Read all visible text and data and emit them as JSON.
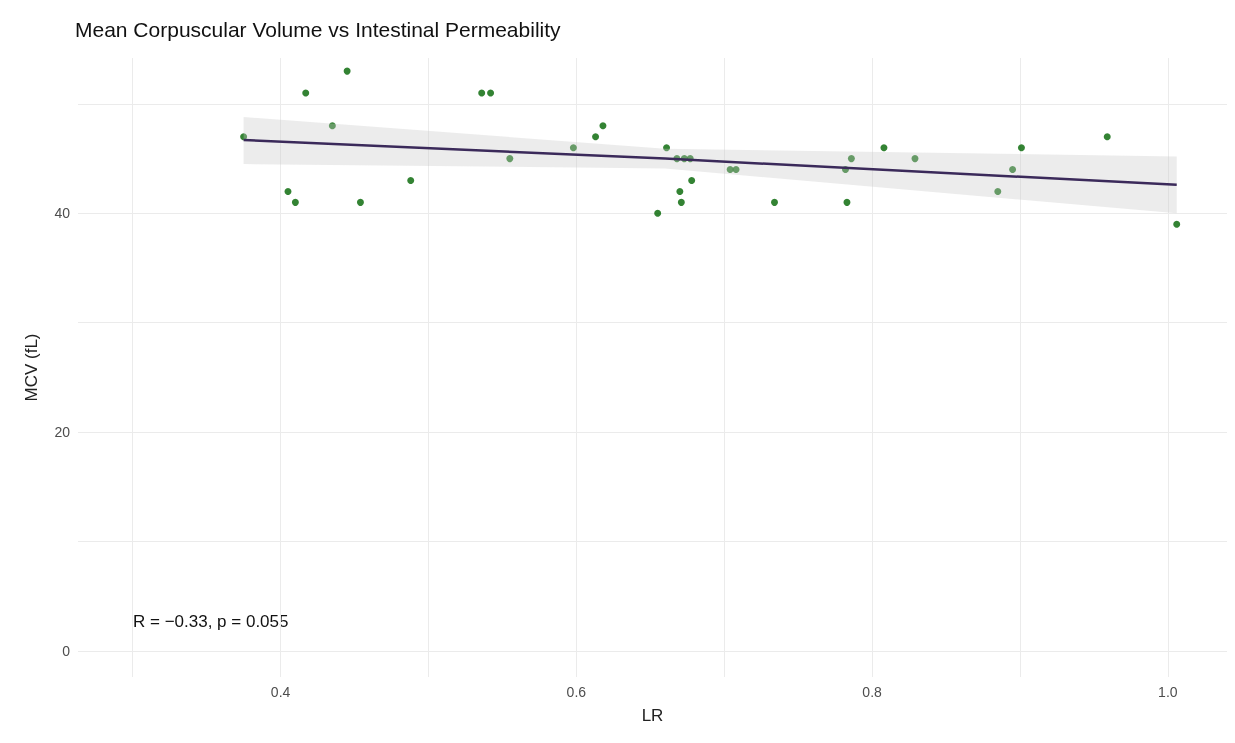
{
  "chart_data": {
    "type": "scatter",
    "title": "Mean Corpuscular Volume vs Intestinal Permeability",
    "xlabel": "LR",
    "ylabel": "MCV (fL)",
    "annotations": [
      "R = −0.33, p = 0.055"
    ],
    "xlim": [
      0.263,
      1.04
    ],
    "xticks": [
      {
        "value": 0.3,
        "label": null
      },
      0.4,
      {
        "value": 0.5,
        "label": null
      },
      0.6,
      {
        "value": 0.7,
        "label": null
      },
      0.8,
      {
        "value": 0.9,
        "label": null
      },
      {
        "value": 1.0,
        "label": "1.0"
      }
    ],
    "ylim": [
      -2.4,
      54.2
    ],
    "yticks": [
      0,
      {
        "value": 10,
        "label": null
      },
      20,
      {
        "value": 30,
        "label": null
      },
      40,
      {
        "value": 50,
        "label": null
      }
    ],
    "grid": true,
    "marker": "circle",
    "series": [
      {
        "color": "#006400",
        "x": [
          0.375,
          0.417,
          0.405,
          0.41,
          0.445,
          0.435,
          0.454,
          0.488,
          0.536,
          0.542,
          0.555,
          0.598,
          0.613,
          0.618,
          0.655,
          0.661,
          0.668,
          0.673,
          0.677,
          0.67,
          0.671,
          0.678,
          0.704,
          0.708,
          0.734,
          0.782,
          0.786,
          0.783,
          0.808,
          0.829,
          0.885,
          0.895,
          0.901,
          0.959,
          1.006
        ],
        "values": [
          47,
          51,
          42,
          41,
          53,
          48,
          41,
          43,
          51,
          51,
          45,
          46,
          47,
          48,
          40,
          46,
          45,
          45,
          45,
          42,
          41,
          43,
          44,
          44,
          41,
          44,
          45,
          41,
          46,
          45,
          42,
          44,
          46,
          47,
          39
        ]
      },
      {
        "type": "line",
        "color": "#3b2a5a",
        "marker": "none",
        "line_style": "solid",
        "x": [
          0.375,
          0.66,
          1.006
        ],
        "values": [
          46.7,
          45.0,
          42.6
        ],
        "lower": [
          44.5,
          44.1,
          40.0
        ],
        "upper": [
          48.8,
          45.9,
          45.2
        ]
      }
    ]
  }
}
